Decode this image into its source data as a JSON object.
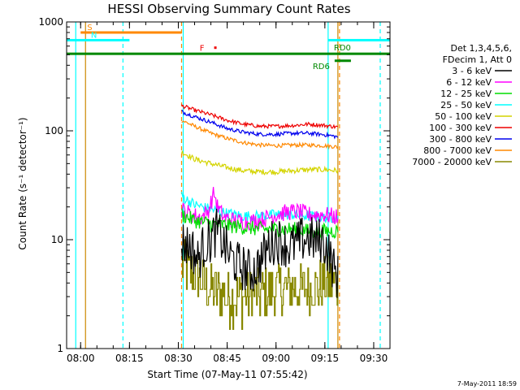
{
  "chart_data": {
    "type": "line",
    "title": "HESSI Observing Summary Count Rates",
    "xlabel": "Start Time (07-May-11 07:55:42)",
    "ylabel": "Count Rate (s⁻¹ detector⁻¹)",
    "y_scale": "log",
    "ylim": [
      1,
      1000
    ],
    "xlim": [
      "07:55:42",
      "09:35:00"
    ],
    "x_ticks": [
      "08:00",
      "08:15",
      "08:30",
      "08:45",
      "09:00",
      "09:15",
      "09:30"
    ],
    "y_ticks": [
      "1",
      "10",
      "100",
      "1000"
    ],
    "stamp": "7-May-2011 18:59",
    "legend": {
      "header1": "Det 1,3,4,5,6,",
      "header2": "FDecim 1, Att 0",
      "entries": [
        {
          "label": "3 - 6 keV",
          "color": "#000000"
        },
        {
          "label": "6 - 12 keV",
          "color": "#ff00ff"
        },
        {
          "label": "12 - 25 keV",
          "color": "#00dd00"
        },
        {
          "label": "25 - 50 keV",
          "color": "#00ffff"
        },
        {
          "label": "50 - 100 keV",
          "color": "#d4d400"
        },
        {
          "label": "100 - 300 keV",
          "color": "#ee0000"
        },
        {
          "label": "300 - 800 keV",
          "color": "#0000ee"
        },
        {
          "label": "800 - 7000 keV",
          "color": "#ff8800"
        },
        {
          "label": "7000 - 20000 keV",
          "color": "#888800"
        }
      ]
    },
    "flags": [
      {
        "label": "S",
        "color": "#ff8800",
        "x_start": "08:00:00",
        "x_end": "08:31:00",
        "y": 800
      },
      {
        "label": "N",
        "color": "#00ffff",
        "x_start": "07:55:42",
        "x_end": "08:15:00",
        "y": 680
      },
      {
        "label": "N",
        "color": "#00ffff",
        "x_start": "09:16:00",
        "x_end": "09:35:00",
        "y": 680
      },
      {
        "label": "F",
        "color": "#ee0000",
        "x_start": "08:41:00",
        "x_end": "08:41:30",
        "y": 580
      },
      {
        "label": "RD0",
        "color": "#008800",
        "x_start": "07:55:42",
        "x_end": "09:35:00",
        "y": 510
      },
      {
        "label": "RD6",
        "color": "#008800",
        "x_start": "09:18:00",
        "x_end": "09:23:00",
        "y": 440
      }
    ],
    "vertical_markers": [
      {
        "x": "07:58:30",
        "color": "#00ffff",
        "style": "solid"
      },
      {
        "x": "08:01:30",
        "color": "#cc8800",
        "style": "solid"
      },
      {
        "x": "08:13:00",
        "color": "#00ffff",
        "style": "dashed"
      },
      {
        "x": "08:31:00",
        "color": "#ff8800",
        "style": "dashed"
      },
      {
        "x": "08:31:30",
        "color": "#00ffff",
        "style": "solid"
      },
      {
        "x": "09:16:00",
        "color": "#00ffff",
        "style": "solid"
      },
      {
        "x": "09:19:00",
        "color": "#cc8800",
        "style": "solid"
      },
      {
        "x": "09:19:30",
        "color": "#ff8800",
        "style": "dashed"
      },
      {
        "x": "09:32:00",
        "color": "#00ffff",
        "style": "dashed"
      }
    ],
    "series": [
      {
        "name": "3 - 6 keV",
        "color": "#000000",
        "x": [
          "08:31",
          "08:34",
          "08:36",
          "08:38",
          "08:40",
          "08:42",
          "08:44",
          "08:46",
          "08:48",
          "08:50",
          "08:52",
          "08:54",
          "08:56",
          "08:58",
          "09:00",
          "09:02",
          "09:04",
          "09:06",
          "09:08",
          "09:10",
          "09:12",
          "09:14",
          "09:16",
          "09:18",
          "09:19"
        ],
        "values": [
          9.5,
          8.5,
          6.5,
          9,
          10,
          12,
          9,
          7,
          6,
          5.5,
          5,
          5.5,
          7,
          9,
          10,
          9.5,
          8.5,
          9,
          10,
          10.5,
          9.5,
          10,
          8,
          5,
          4.5
        ],
        "noise": 0.22
      },
      {
        "name": "6 - 12 keV",
        "color": "#ff00ff",
        "x": [
          "08:31",
          "08:34",
          "08:37",
          "08:39",
          "08:40",
          "08:41",
          "08:42",
          "08:44",
          "08:47",
          "08:50",
          "08:55",
          "09:00",
          "09:04",
          "09:07",
          "09:10",
          "09:15",
          "09:19"
        ],
        "values": [
          19,
          17,
          16,
          18,
          22,
          27,
          20,
          16,
          15,
          14.5,
          15,
          17,
          18,
          18,
          17,
          17,
          16
        ],
        "noise": 0.08
      },
      {
        "name": "12 - 25 keV",
        "color": "#00dd00",
        "x": [
          "08:31",
          "08:35",
          "08:40",
          "08:45",
          "08:50",
          "08:55",
          "09:00",
          "09:05",
          "09:10",
          "09:15",
          "09:19"
        ],
        "values": [
          17,
          15,
          14,
          13.5,
          13,
          12.5,
          12.5,
          12.5,
          12,
          12,
          12
        ],
        "noise": 0.07
      },
      {
        "name": "25 - 50 keV",
        "color": "#00ffff",
        "x": [
          "08:31",
          "08:35",
          "08:40",
          "08:45",
          "08:50",
          "08:55",
          "09:00",
          "09:05",
          "09:10",
          "09:15",
          "09:19"
        ],
        "values": [
          25,
          21,
          19,
          17.5,
          16.5,
          16.5,
          17,
          17,
          16.5,
          16,
          16
        ],
        "noise": 0.05
      },
      {
        "name": "50 - 100 keV",
        "color": "#d4d400",
        "x": [
          "08:31",
          "08:35",
          "08:40",
          "08:45",
          "08:50",
          "08:55",
          "09:00",
          "09:05",
          "09:10",
          "09:15",
          "09:19"
        ],
        "values": [
          64,
          55,
          50,
          46,
          43,
          42,
          42,
          43,
          44,
          44,
          43
        ],
        "noise": 0.025
      },
      {
        "name": "100 - 300 keV",
        "color": "#ee0000",
        "x": [
          "08:31",
          "08:35",
          "08:40",
          "08:45",
          "08:50",
          "08:55",
          "09:00",
          "09:05",
          "09:10",
          "09:15",
          "09:19"
        ],
        "values": [
          170,
          155,
          140,
          125,
          115,
          110,
          110,
          112,
          115,
          112,
          108
        ],
        "noise": 0.018
      },
      {
        "name": "300 - 800 keV",
        "color": "#0000ee",
        "x": [
          "08:31",
          "08:35",
          "08:40",
          "08:45",
          "08:50",
          "08:55",
          "09:00",
          "09:05",
          "09:10",
          "09:15",
          "09:19"
        ],
        "values": [
          150,
          135,
          120,
          105,
          97,
          93,
          93,
          95,
          95,
          92,
          88
        ],
        "noise": 0.018
      },
      {
        "name": "800 - 7000 keV",
        "color": "#ff8800",
        "x": [
          "08:31",
          "08:35",
          "08:40",
          "08:45",
          "08:50",
          "08:55",
          "09:00",
          "09:05",
          "09:10",
          "09:15",
          "09:19"
        ],
        "values": [
          125,
          110,
          95,
          85,
          78,
          74,
          73,
          74,
          74,
          73,
          71
        ],
        "noise": 0.018
      },
      {
        "name": "7000 - 20000 keV",
        "color": "#888800",
        "x": [
          "08:31",
          "08:33",
          "08:36",
          "08:40",
          "08:45",
          "08:50",
          "08:55",
          "09:00",
          "09:05",
          "09:10",
          "09:15",
          "09:19"
        ],
        "values": [
          6,
          5,
          4.5,
          3.5,
          3,
          3,
          3.2,
          3.5,
          3.5,
          3.5,
          4,
          4
        ],
        "noise": 0.25,
        "step": true
      }
    ]
  }
}
